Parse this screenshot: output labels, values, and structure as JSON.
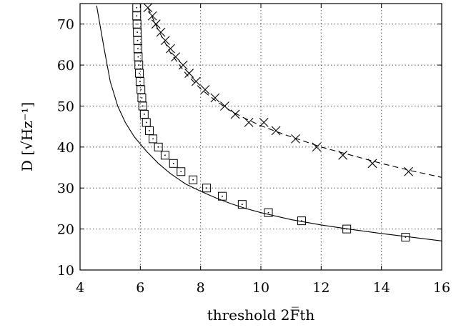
{
  "chart_data": {
    "type": "line",
    "xlabel": "threshold 2F̅th",
    "ylabel": "D [√Hz⁻¹]",
    "xlim": [
      4,
      16
    ],
    "ylim": [
      10,
      75
    ],
    "x_ticks": [
      "4",
      "6",
      "8",
      "10",
      "12",
      "14",
      "16"
    ],
    "y_ticks": [
      "10",
      "20",
      "30",
      "40",
      "50",
      "60",
      "70"
    ],
    "grid": true,
    "series": [
      {
        "style": "solid-line",
        "color": "#000000",
        "points": [
          [
            4.55,
            74.5
          ],
          [
            4.8,
            64
          ],
          [
            5.0,
            56
          ],
          [
            5.25,
            50
          ],
          [
            5.5,
            46
          ],
          [
            5.8,
            42.5
          ],
          [
            6.2,
            39
          ],
          [
            6.6,
            36
          ],
          [
            7.0,
            33.5
          ],
          [
            7.5,
            31
          ],
          [
            8.0,
            29.2
          ],
          [
            8.5,
            27.6
          ],
          [
            9.0,
            26.2
          ],
          [
            9.5,
            25
          ],
          [
            10.0,
            24
          ],
          [
            11.0,
            22.3
          ],
          [
            12.0,
            21
          ],
          [
            13.0,
            19.9
          ],
          [
            14.0,
            18.9
          ],
          [
            15.0,
            18
          ],
          [
            16.0,
            17.1
          ]
        ]
      },
      {
        "style": "squares",
        "color": "#000000",
        "points": [
          [
            5.88,
            74
          ],
          [
            5.88,
            72
          ],
          [
            5.89,
            70
          ],
          [
            5.9,
            68
          ],
          [
            5.91,
            66
          ],
          [
            5.92,
            64
          ],
          [
            5.93,
            62
          ],
          [
            5.95,
            60
          ],
          [
            5.97,
            58
          ],
          [
            5.99,
            56
          ],
          [
            6.02,
            54
          ],
          [
            6.05,
            52
          ],
          [
            6.08,
            50
          ],
          [
            6.13,
            48
          ],
          [
            6.2,
            46
          ],
          [
            6.3,
            44
          ],
          [
            6.42,
            42
          ],
          [
            6.6,
            40
          ],
          [
            6.82,
            38
          ],
          [
            7.1,
            36
          ],
          [
            7.35,
            34
          ],
          [
            7.75,
            32
          ],
          [
            8.2,
            30
          ],
          [
            8.72,
            28
          ],
          [
            9.38,
            26
          ],
          [
            10.25,
            24
          ],
          [
            11.35,
            22
          ],
          [
            12.85,
            20
          ],
          [
            14.8,
            18
          ]
        ]
      },
      {
        "style": "dashed-line",
        "color": "#000000",
        "points": [
          [
            6.25,
            74
          ],
          [
            6.6,
            68.5
          ],
          [
            7.0,
            63
          ],
          [
            7.5,
            58
          ],
          [
            8.0,
            54.2
          ],
          [
            8.5,
            51.3
          ],
          [
            9.0,
            48.8
          ],
          [
            9.5,
            46.9
          ],
          [
            10.0,
            45.2
          ],
          [
            10.5,
            43.8
          ],
          [
            11.0,
            42.5
          ],
          [
            12.0,
            40
          ],
          [
            13.0,
            38
          ],
          [
            14.0,
            36
          ],
          [
            15.0,
            34.2
          ],
          [
            16.0,
            32.6
          ]
        ]
      },
      {
        "style": "crosses",
        "color": "#000000",
        "points": [
          [
            6.25,
            74
          ],
          [
            6.4,
            72
          ],
          [
            6.52,
            70
          ],
          [
            6.68,
            68
          ],
          [
            6.83,
            66
          ],
          [
            7.0,
            64
          ],
          [
            7.17,
            62
          ],
          [
            7.42,
            60
          ],
          [
            7.62,
            58
          ],
          [
            7.85,
            56
          ],
          [
            8.15,
            54
          ],
          [
            8.48,
            52
          ],
          [
            8.8,
            50
          ],
          [
            9.15,
            48
          ],
          [
            9.6,
            46
          ],
          [
            10.1,
            46
          ],
          [
            10.5,
            44
          ],
          [
            11.15,
            42
          ],
          [
            11.85,
            40
          ],
          [
            12.72,
            38
          ],
          [
            13.7,
            36
          ],
          [
            14.9,
            34
          ]
        ]
      }
    ]
  }
}
